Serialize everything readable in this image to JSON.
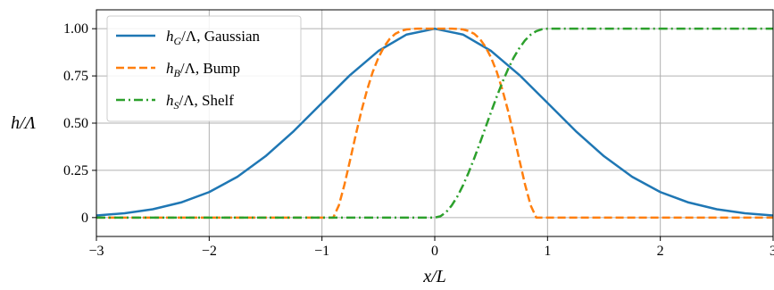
{
  "chart_data": {
    "type": "line",
    "title": "",
    "xlabel": "x/L",
    "ylabel": "h/Λ",
    "xlim": [
      -3,
      3
    ],
    "ylim": [
      -0.1,
      1.1
    ],
    "xticks": [
      -3,
      -2,
      -1,
      0,
      1,
      2,
      3
    ],
    "xtick_labels": [
      "−3",
      "−2",
      "−1",
      "0",
      "1",
      "2",
      "3"
    ],
    "yticks": [
      0,
      0.25,
      0.5,
      0.75,
      1.0
    ],
    "ytick_labels": [
      "0",
      "0.25",
      "0.50",
      "0.75",
      "1.00"
    ],
    "grid": true,
    "legend_position": "top-left",
    "series": [
      {
        "name": "hG/Λ, Gaussian",
        "legend_var": "h",
        "legend_sub": "G",
        "legend_rest": "/Λ, Gaussian",
        "color": "#1f77b4",
        "style": "solid",
        "x": [
          -3.0,
          -2.75,
          -2.5,
          -2.25,
          -2.0,
          -1.75,
          -1.5,
          -1.25,
          -1.0,
          -0.75,
          -0.5,
          -0.25,
          0.0,
          0.25,
          0.5,
          0.75,
          1.0,
          1.25,
          1.5,
          1.75,
          2.0,
          2.25,
          2.5,
          2.75,
          3.0
        ],
        "y": [
          0.011,
          0.023,
          0.044,
          0.08,
          0.135,
          0.216,
          0.325,
          0.458,
          0.607,
          0.755,
          0.882,
          0.969,
          1.0,
          0.969,
          0.882,
          0.755,
          0.607,
          0.458,
          0.325,
          0.216,
          0.135,
          0.08,
          0.044,
          0.023,
          0.011
        ]
      },
      {
        "name": "hB/Λ, Bump",
        "legend_var": "h",
        "legend_sub": "B",
        "legend_rest": "/Λ, Bump",
        "color": "#ff7f0e",
        "style": "dashed",
        "x": [
          -3.0,
          -0.9,
          -0.85,
          -0.8,
          -0.75,
          -0.7,
          -0.65,
          -0.6,
          -0.55,
          -0.5,
          -0.45,
          -0.4,
          -0.35,
          -0.3,
          -0.25,
          -0.2,
          -0.15,
          -0.1,
          -0.05,
          0.0,
          0.05,
          0.1,
          0.15,
          0.2,
          0.25,
          0.3,
          0.35,
          0.4,
          0.45,
          0.5,
          0.55,
          0.6,
          0.65,
          0.7,
          0.75,
          0.8,
          0.85,
          0.9,
          3.0
        ],
        "y": [
          0,
          0,
          0.065,
          0.176,
          0.306,
          0.439,
          0.565,
          0.676,
          0.771,
          0.846,
          0.904,
          0.946,
          0.973,
          0.988,
          0.996,
          0.999,
          1.0,
          1.0,
          1.0,
          1.0,
          1.0,
          1.0,
          1.0,
          0.999,
          0.996,
          0.988,
          0.973,
          0.946,
          0.904,
          0.846,
          0.771,
          0.676,
          0.565,
          0.439,
          0.306,
          0.176,
          0.065,
          0,
          0
        ]
      },
      {
        "name": "hS/Λ, Shelf",
        "legend_var": "h",
        "legend_sub": "S",
        "legend_rest": "/Λ, Shelf",
        "color": "#2ca02c",
        "style": "dashdot",
        "x": [
          -3.0,
          0.0,
          0.05,
          0.1,
          0.15,
          0.2,
          0.25,
          0.3,
          0.35,
          0.4,
          0.45,
          0.5,
          0.55,
          0.6,
          0.65,
          0.7,
          0.75,
          0.8,
          0.85,
          0.9,
          0.95,
          1.0,
          3.0
        ],
        "y": [
          0,
          0,
          0.007,
          0.028,
          0.064,
          0.111,
          0.17,
          0.238,
          0.314,
          0.394,
          0.477,
          0.56,
          0.641,
          0.717,
          0.786,
          0.847,
          0.897,
          0.938,
          0.968,
          0.987,
          0.997,
          1.0,
          1.0
        ]
      }
    ]
  }
}
